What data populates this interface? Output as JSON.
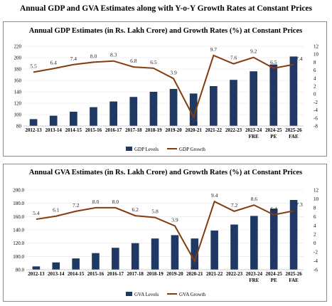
{
  "header": {
    "title": "Annual GDP and GVA Estimates along with Y-o-Y Growth Rates at Constant Prices"
  },
  "chart_data": [
    {
      "type": "bar",
      "title": "Annual GDP Estimates (in Rs. Lakh Crore) and Growth Rates (%) at Constant Prices",
      "categories": [
        "2012-13",
        "2013-14",
        "2014-15",
        "2015-16",
        "2016-17",
        "2017-18",
        "2018-19",
        "2019-20",
        "2020-21",
        "2021-22",
        "2022-23",
        "2023-24\nFRE",
        "2024-25\nPE",
        "2025-26\nFAE"
      ],
      "series": [
        {
          "name": "GDP Levels",
          "type": "bar",
          "axis": "left",
          "values": [
            92,
            98,
            105,
            113,
            123,
            131,
            140,
            145,
            137,
            150,
            161,
            176,
            188,
            202
          ]
        },
        {
          "name": "GDP Growth",
          "type": "line",
          "axis": "right",
          "values": [
            5.5,
            6.4,
            7.4,
            8.0,
            8.3,
            6.8,
            6.5,
            3.9,
            -5.8,
            9.7,
            7.6,
            9.2,
            6.5,
            7.4
          ],
          "labels": [
            "5.5",
            "6.4",
            "7.4",
            "8.0",
            "8.3",
            "6.8",
            "6.5",
            "3.9",
            "-5.8",
            "9.7",
            "7.6",
            "9.2",
            "6.5",
            "7.4"
          ]
        }
      ],
      "ylim": [
        80,
        220
      ],
      "yticks": [
        "80",
        "100",
        "120",
        "140",
        "160",
        "180",
        "200",
        "220"
      ],
      "y2lim": [
        -8,
        12
      ],
      "y2ticks": [
        "-8",
        "-6",
        "-4",
        "-2",
        "0",
        "2",
        "4",
        "6",
        "8",
        "10",
        "12"
      ],
      "legend_position": "bottom",
      "colors": {
        "bar": "#1f3864",
        "line": "#843c0c"
      }
    },
    {
      "type": "bar",
      "title": "Annual GVA Estimates (in Rs. Lakh Crore) and Growth Rates (%) at Constant Prices",
      "categories": [
        "2012-13",
        "2013-14",
        "2014-15",
        "2015-16",
        "2016-17",
        "2017-18",
        "2018-19",
        "2019-20",
        "2020-21",
        "2021-22",
        "2022-23",
        "2023-24\nFRE",
        "2024-25\nPE",
        "2025-26\nFAE"
      ],
      "series": [
        {
          "name": "GVA Levels",
          "type": "bar",
          "axis": "left",
          "values": [
            85,
            91,
            97,
            105,
            113,
            120,
            127,
            132,
            127,
            139,
            148,
            161,
            172,
            185
          ]
        },
        {
          "name": "GVA Growth",
          "type": "line",
          "axis": "right",
          "values": [
            5.4,
            6.1,
            7.2,
            8.0,
            8.0,
            6.2,
            5.8,
            3.9,
            -4.1,
            9.4,
            7.2,
            8.6,
            6.4,
            7.3
          ],
          "labels": [
            "5.4",
            "6.1",
            "7.2",
            "8.0",
            "8.0",
            "6.2",
            "5.8",
            "3.9",
            "-4.1",
            "9.4",
            "7.2",
            "8.6",
            "6.4",
            "7.3"
          ]
        }
      ],
      "ylim": [
        80,
        200
      ],
      "yticks": [
        "80.0",
        "100.0",
        "120.0",
        "140.0",
        "160.0",
        "180.0",
        "200.0"
      ],
      "y2lim": [
        -6,
        12
      ],
      "y2ticks": [
        "-6",
        "-4",
        "-2",
        "0",
        "2",
        "4",
        "6",
        "8",
        "10",
        "12"
      ],
      "legend_position": "bottom",
      "colors": {
        "bar": "#1f3864",
        "line": "#843c0c"
      }
    }
  ]
}
